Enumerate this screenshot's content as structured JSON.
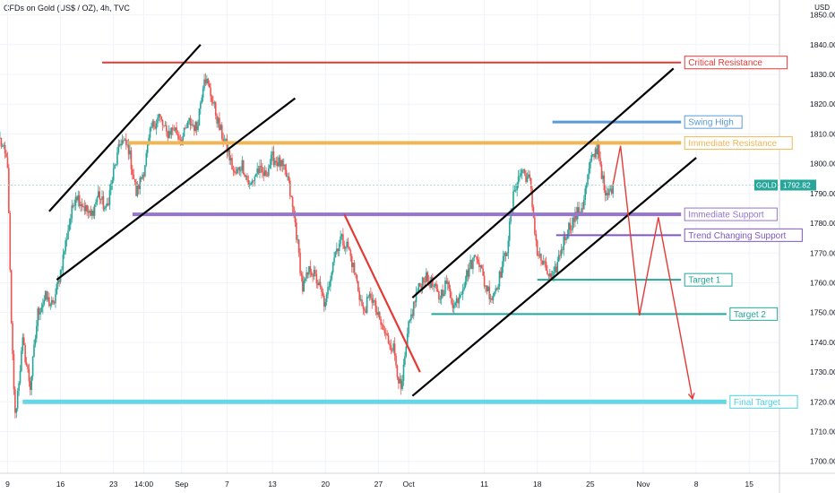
{
  "header": {
    "title": "CFDs on Gold (US$ / OZ), 4h, TVC",
    "unit": "USD"
  },
  "colors": {
    "bull": "#26a69a",
    "bear": "#ef5350",
    "grid": "#f0f3fa",
    "price_line": "#b2dfdb",
    "critical": "#e53935",
    "swing": "#5b9bd5",
    "immediate_res": "#f0b654",
    "immediate_sup": "#9575cd",
    "trend_sup": "#7e57c2",
    "target": "#26a69a",
    "final": "#4dd0e1",
    "channel": "#000000",
    "red_line": "#e53935",
    "projection": "#e53935"
  },
  "chart_data": {
    "type": "candlestick",
    "title": "CFDs on Gold (US$ / OZ), 4h, TVC",
    "ylabel": "USD",
    "ylim": [
      1696,
      1855
    ],
    "y_ticks": [
      1700,
      1710,
      1720,
      1730,
      1740,
      1750,
      1760,
      1770,
      1780,
      1790,
      1800,
      1810,
      1820,
      1830,
      1840,
      1850
    ],
    "x_ticks": [
      {
        "label": "9",
        "t": 0
      },
      {
        "label": "16",
        "t": 7
      },
      {
        "label": "23",
        "t": 14
      },
      {
        "label": "14:00",
        "t": 18
      },
      {
        "label": "Sep",
        "t": 23
      },
      {
        "label": "7",
        "t": 29
      },
      {
        "label": "13",
        "t": 35
      },
      {
        "label": "20",
        "t": 42
      },
      {
        "label": "27",
        "t": 49
      },
      {
        "label": "Oct",
        "t": 53
      },
      {
        "label": "11",
        "t": 63
      },
      {
        "label": "18",
        "t": 70
      },
      {
        "label": "25",
        "t": 77
      },
      {
        "label": "Nov",
        "t": 84
      },
      {
        "label": "8",
        "t": 91
      },
      {
        "label": "15",
        "t": 98
      }
    ],
    "x_range": [
      -1,
      102
    ],
    "last_price": {
      "symbol": "GOLD",
      "value": "1792.82",
      "y": 1792.82
    },
    "anchors": [
      [
        -1,
        1808
      ],
      [
        0,
        1800
      ],
      [
        0.5,
        1745
      ],
      [
        1,
        1715
      ],
      [
        2,
        1740
      ],
      [
        3,
        1725
      ],
      [
        4,
        1750
      ],
      [
        5,
        1755
      ],
      [
        6,
        1752
      ],
      [
        7,
        1764
      ],
      [
        8,
        1778
      ],
      [
        9,
        1790
      ],
      [
        10,
        1786
      ],
      [
        11,
        1782
      ],
      [
        12,
        1790
      ],
      [
        13,
        1784
      ],
      [
        14,
        1797
      ],
      [
        15,
        1808
      ],
      [
        16,
        1805
      ],
      [
        17,
        1790
      ],
      [
        18,
        1798
      ],
      [
        19,
        1812
      ],
      [
        20,
        1816
      ],
      [
        21,
        1810
      ],
      [
        22,
        1812
      ],
      [
        23,
        1808
      ],
      [
        24,
        1814
      ],
      [
        25,
        1812
      ],
      [
        26,
        1830
      ],
      [
        27,
        1822
      ],
      [
        28,
        1812
      ],
      [
        29,
        1805
      ],
      [
        30,
        1796
      ],
      [
        31,
        1800
      ],
      [
        32,
        1792
      ],
      [
        33,
        1798
      ],
      [
        34,
        1796
      ],
      [
        35,
        1802
      ],
      [
        36,
        1800
      ],
      [
        37,
        1795
      ],
      [
        38,
        1780
      ],
      [
        39,
        1758
      ],
      [
        40,
        1765
      ],
      [
        41,
        1760
      ],
      [
        42,
        1752
      ],
      [
        43,
        1768
      ],
      [
        44,
        1775
      ],
      [
        45,
        1772
      ],
      [
        46,
        1762
      ],
      [
        47,
        1750
      ],
      [
        48,
        1756
      ],
      [
        49,
        1748
      ],
      [
        50,
        1742
      ],
      [
        51,
        1738
      ],
      [
        52,
        1723
      ],
      [
        53,
        1745
      ],
      [
        54,
        1756
      ],
      [
        55,
        1762
      ],
      [
        56,
        1760
      ],
      [
        57,
        1755
      ],
      [
        58,
        1760
      ],
      [
        59,
        1752
      ],
      [
        60,
        1758
      ],
      [
        61,
        1765
      ],
      [
        62,
        1770
      ],
      [
        63,
        1760
      ],
      [
        64,
        1755
      ],
      [
        65,
        1762
      ],
      [
        66,
        1772
      ],
      [
        67,
        1792
      ],
      [
        68,
        1798
      ],
      [
        69,
        1794
      ],
      [
        70,
        1770
      ],
      [
        71,
        1765
      ],
      [
        72,
        1760
      ],
      [
        73,
        1770
      ],
      [
        74,
        1778
      ],
      [
        75,
        1782
      ],
      [
        76,
        1786
      ],
      [
        77,
        1800
      ],
      [
        78,
        1806
      ],
      [
        79,
        1788
      ],
      [
        80,
        1792.82
      ]
    ],
    "levels": [
      {
        "label": "Critical Resistance",
        "y": 1834,
        "t0": 12.5,
        "t1": 89,
        "color": "critical",
        "width": 2
      },
      {
        "label": "Swing High",
        "y": 1814,
        "t0": 72,
        "t1": 89,
        "color": "swing",
        "width": 3
      },
      {
        "label": "Immediate Resistance",
        "y": 1807,
        "t0": 16,
        "t1": 89,
        "color": "immediate_res",
        "width": 4
      },
      {
        "label": "Immediate Support",
        "y": 1783,
        "t0": 16.5,
        "t1": 89,
        "color": "immediate_sup",
        "width": 4
      },
      {
        "label": "Trend Changing Support",
        "y": 1776,
        "t0": 72.5,
        "t1": 89,
        "color": "trend_sup",
        "width": 2
      },
      {
        "label": "Target 1",
        "y": 1761,
        "t0": 70,
        "t1": 89,
        "color": "target",
        "width": 2
      },
      {
        "label": "Target 2",
        "y": 1749.5,
        "t0": 56,
        "t1": 95,
        "color": "target",
        "width": 2
      },
      {
        "label": "Final Target",
        "y": 1720,
        "t0": 2,
        "t1": 95,
        "color": "final",
        "width": 5
      }
    ],
    "lines": [
      {
        "t0": 5.5,
        "y0": 1784,
        "t1": 25.5,
        "y1": 1840,
        "color": "channel"
      },
      {
        "t0": 6.5,
        "y0": 1761,
        "t1": 38,
        "y1": 1822,
        "color": "channel"
      },
      {
        "t0": 53.5,
        "y0": 1755,
        "t1": 88,
        "y1": 1832,
        "color": "channel"
      },
      {
        "t0": 53.5,
        "y0": 1722,
        "t1": 91,
        "y1": 1802,
        "color": "channel"
      },
      {
        "t0": 44.5,
        "y0": 1783,
        "t1": 54.5,
        "y1": 1730,
        "color": "red_line"
      }
    ],
    "projection": [
      [
        80,
        1793
      ],
      [
        81,
        1806
      ],
      [
        83.5,
        1749
      ],
      [
        86,
        1782
      ],
      [
        90.5,
        1721
      ]
    ]
  }
}
